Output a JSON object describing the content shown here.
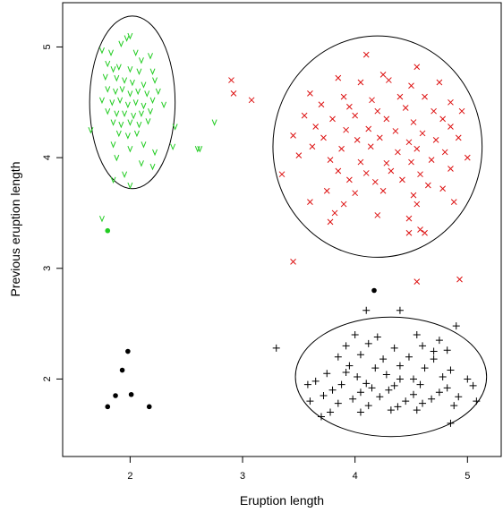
{
  "chart_data": {
    "type": "scatter",
    "xlabel": "Eruption length",
    "ylabel": "Previous eruption length",
    "xlim": [
      1.4,
      5.3
    ],
    "ylim": [
      1.3,
      5.4
    ],
    "xticks": [
      2,
      3,
      4,
      5
    ],
    "yticks": [
      2,
      3,
      4,
      5
    ],
    "xtick_labels": [
      "2",
      "3",
      "4",
      "5"
    ],
    "ytick_labels": [
      "2",
      "3",
      "4",
      "5"
    ],
    "grid": false,
    "legend": "none",
    "colors": {
      "green": "#22cc22",
      "red": "#dd1111",
      "black": "#000000"
    },
    "series": [
      {
        "marker": "v",
        "color": "#22cc22",
        "points": [
          [
            1.97,
            5.08
          ],
          [
            2.0,
            5.1
          ],
          [
            1.92,
            5.03
          ],
          [
            1.75,
            4.97
          ],
          [
            1.83,
            4.95
          ],
          [
            2.05,
            4.95
          ],
          [
            2.1,
            4.88
          ],
          [
            2.18,
            4.92
          ],
          [
            1.8,
            4.85
          ],
          [
            1.85,
            4.8
          ],
          [
            1.9,
            4.82
          ],
          [
            2.0,
            4.8
          ],
          [
            2.08,
            4.78
          ],
          [
            2.2,
            4.78
          ],
          [
            1.78,
            4.73
          ],
          [
            1.88,
            4.72
          ],
          [
            1.95,
            4.7
          ],
          [
            2.02,
            4.68
          ],
          [
            2.12,
            4.66
          ],
          [
            2.22,
            4.7
          ],
          [
            1.8,
            4.62
          ],
          [
            1.87,
            4.6
          ],
          [
            1.93,
            4.62
          ],
          [
            2.0,
            4.58
          ],
          [
            2.07,
            4.6
          ],
          [
            2.15,
            4.58
          ],
          [
            2.25,
            4.6
          ],
          [
            1.75,
            4.52
          ],
          [
            1.84,
            4.5
          ],
          [
            1.91,
            4.52
          ],
          [
            1.98,
            4.48
          ],
          [
            2.05,
            4.5
          ],
          [
            2.12,
            4.47
          ],
          [
            2.2,
            4.52
          ],
          [
            2.3,
            4.48
          ],
          [
            1.8,
            4.42
          ],
          [
            1.88,
            4.4
          ],
          [
            1.95,
            4.4
          ],
          [
            2.03,
            4.38
          ],
          [
            2.1,
            4.4
          ],
          [
            2.18,
            4.42
          ],
          [
            1.85,
            4.32
          ],
          [
            1.92,
            4.3
          ],
          [
            2.0,
            4.32
          ],
          [
            2.08,
            4.3
          ],
          [
            2.16,
            4.33
          ],
          [
            1.9,
            4.22
          ],
          [
            1.98,
            4.2
          ],
          [
            2.06,
            4.22
          ],
          [
            1.65,
            4.25
          ],
          [
            2.4,
            4.28
          ],
          [
            1.85,
            4.12
          ],
          [
            2.12,
            4.12
          ],
          [
            2.0,
            4.08
          ],
          [
            2.22,
            4.05
          ],
          [
            2.38,
            4.1
          ],
          [
            1.88,
            4.0
          ],
          [
            2.1,
            3.95
          ],
          [
            1.95,
            3.85
          ],
          [
            2.2,
            3.92
          ],
          [
            2.0,
            3.75
          ],
          [
            1.85,
            3.8
          ],
          [
            2.6,
            4.08
          ],
          [
            2.62,
            4.08
          ],
          [
            2.75,
            4.32
          ],
          [
            1.75,
            3.45
          ]
        ]
      },
      {
        "marker": "x",
        "color": "#dd1111",
        "points": [
          [
            4.1,
            4.93
          ],
          [
            4.55,
            4.82
          ],
          [
            4.25,
            4.75
          ],
          [
            4.05,
            4.68
          ],
          [
            4.3,
            4.7
          ],
          [
            3.85,
            4.72
          ],
          [
            4.5,
            4.65
          ],
          [
            4.75,
            4.68
          ],
          [
            3.6,
            4.58
          ],
          [
            3.9,
            4.55
          ],
          [
            4.15,
            4.52
          ],
          [
            4.4,
            4.55
          ],
          [
            4.62,
            4.55
          ],
          [
            4.85,
            4.5
          ],
          [
            3.7,
            4.48
          ],
          [
            3.95,
            4.46
          ],
          [
            4.2,
            4.42
          ],
          [
            4.45,
            4.45
          ],
          [
            4.7,
            4.42
          ],
          [
            4.95,
            4.42
          ],
          [
            3.55,
            4.38
          ],
          [
            3.8,
            4.35
          ],
          [
            4.0,
            4.38
          ],
          [
            4.28,
            4.35
          ],
          [
            4.52,
            4.32
          ],
          [
            4.78,
            4.35
          ],
          [
            3.65,
            4.28
          ],
          [
            3.92,
            4.25
          ],
          [
            4.12,
            4.26
          ],
          [
            4.36,
            4.24
          ],
          [
            4.6,
            4.22
          ],
          [
            4.85,
            4.28
          ],
          [
            3.45,
            4.2
          ],
          [
            3.72,
            4.18
          ],
          [
            4.02,
            4.16
          ],
          [
            4.22,
            4.18
          ],
          [
            4.48,
            4.14
          ],
          [
            4.72,
            4.16
          ],
          [
            4.92,
            4.18
          ],
          [
            3.62,
            4.1
          ],
          [
            3.88,
            4.08
          ],
          [
            4.14,
            4.1
          ],
          [
            4.38,
            4.05
          ],
          [
            4.55,
            4.08
          ],
          [
            4.8,
            4.05
          ],
          [
            3.5,
            4.02
          ],
          [
            3.78,
            3.98
          ],
          [
            4.05,
            3.96
          ],
          [
            4.28,
            3.95
          ],
          [
            4.5,
            3.96
          ],
          [
            4.68,
            3.98
          ],
          [
            5.0,
            4.0
          ],
          [
            3.85,
            3.88
          ],
          [
            4.1,
            3.86
          ],
          [
            4.32,
            3.88
          ],
          [
            4.58,
            3.85
          ],
          [
            4.85,
            3.9
          ],
          [
            3.35,
            3.85
          ],
          [
            3.95,
            3.8
          ],
          [
            4.18,
            3.78
          ],
          [
            4.42,
            3.8
          ],
          [
            4.65,
            3.75
          ],
          [
            3.75,
            3.7
          ],
          [
            4.0,
            3.68
          ],
          [
            4.25,
            3.7
          ],
          [
            4.52,
            3.66
          ],
          [
            4.78,
            3.72
          ],
          [
            3.6,
            3.6
          ],
          [
            3.9,
            3.58
          ],
          [
            4.55,
            3.58
          ],
          [
            4.88,
            3.6
          ],
          [
            3.82,
            3.5
          ],
          [
            4.2,
            3.48
          ],
          [
            4.48,
            3.45
          ],
          [
            3.78,
            3.42
          ],
          [
            4.58,
            3.35
          ],
          [
            4.48,
            3.32
          ],
          [
            4.62,
            3.32
          ],
          [
            2.9,
            4.7
          ],
          [
            2.92,
            4.58
          ],
          [
            3.08,
            4.52
          ],
          [
            3.45,
            3.06
          ],
          [
            4.55,
            2.88
          ],
          [
            4.93,
            2.9
          ]
        ]
      },
      {
        "marker": "+",
        "color": "#000000",
        "points": [
          [
            4.1,
            2.62
          ],
          [
            4.4,
            2.62
          ],
          [
            4.9,
            2.48
          ],
          [
            3.3,
            2.28
          ],
          [
            4.0,
            2.4
          ],
          [
            4.2,
            2.38
          ],
          [
            4.55,
            2.4
          ],
          [
            4.75,
            2.35
          ],
          [
            3.92,
            2.3
          ],
          [
            4.12,
            2.32
          ],
          [
            4.35,
            2.28
          ],
          [
            4.6,
            2.3
          ],
          [
            4.82,
            2.26
          ],
          [
            3.85,
            2.2
          ],
          [
            4.05,
            2.22
          ],
          [
            4.25,
            2.18
          ],
          [
            4.48,
            2.2
          ],
          [
            4.7,
            2.18
          ],
          [
            3.95,
            2.12
          ],
          [
            4.18,
            2.1
          ],
          [
            4.4,
            2.12
          ],
          [
            4.62,
            2.1
          ],
          [
            4.85,
            2.08
          ],
          [
            3.75,
            2.05
          ],
          [
            4.02,
            2.02
          ],
          [
            4.28,
            2.04
          ],
          [
            4.52,
            2.0
          ],
          [
            4.78,
            2.02
          ],
          [
            5.0,
            2.0
          ],
          [
            3.65,
            1.98
          ],
          [
            3.88,
            1.95
          ],
          [
            4.1,
            1.96
          ],
          [
            4.35,
            1.94
          ],
          [
            4.58,
            1.95
          ],
          [
            4.82,
            1.92
          ],
          [
            3.58,
            1.95
          ],
          [
            3.8,
            1.9
          ],
          [
            4.05,
            1.88
          ],
          [
            4.3,
            1.9
          ],
          [
            4.52,
            1.86
          ],
          [
            4.75,
            1.88
          ],
          [
            3.72,
            1.85
          ],
          [
            3.98,
            1.82
          ],
          [
            4.22,
            1.84
          ],
          [
            4.45,
            1.8
          ],
          [
            4.68,
            1.82
          ],
          [
            4.92,
            1.84
          ],
          [
            3.6,
            1.8
          ],
          [
            3.85,
            1.78
          ],
          [
            4.12,
            1.76
          ],
          [
            4.38,
            1.75
          ],
          [
            4.6,
            1.78
          ],
          [
            4.88,
            1.76
          ],
          [
            5.08,
            1.8
          ],
          [
            3.78,
            1.7
          ],
          [
            4.05,
            1.7
          ],
          [
            4.32,
            1.72
          ],
          [
            4.55,
            1.72
          ],
          [
            3.7,
            1.66
          ],
          [
            4.85,
            1.6
          ],
          [
            5.05,
            1.94
          ],
          [
            4.7,
            2.25
          ],
          [
            3.92,
            2.06
          ],
          [
            4.15,
            1.92
          ],
          [
            4.4,
            2.0
          ]
        ]
      },
      {
        "marker": "dot",
        "color": "#000000",
        "points": [
          [
            4.17,
            2.8
          ],
          [
            1.98,
            2.25
          ],
          [
            1.93,
            2.08
          ],
          [
            1.87,
            1.85
          ],
          [
            2.01,
            1.86
          ],
          [
            1.8,
            1.75
          ],
          [
            2.17,
            1.75
          ]
        ]
      },
      {
        "marker": "dot",
        "color": "#22cc22",
        "points": [
          [
            1.8,
            3.34
          ]
        ]
      }
    ],
    "ellipses": [
      {
        "cx": 2.02,
        "cy": 4.5,
        "rx": 0.38,
        "ry": 0.78
      },
      {
        "cx": 4.2,
        "cy": 4.1,
        "rx": 0.93,
        "ry": 1.0
      },
      {
        "cx": 4.32,
        "cy": 2.02,
        "rx": 0.85,
        "ry": 0.54
      }
    ]
  }
}
